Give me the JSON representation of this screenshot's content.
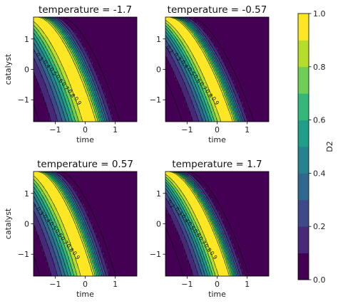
{
  "chart_data": {
    "type": "heatmap",
    "colorbar": {
      "label": "D2",
      "ticks": [
        "0.0",
        "0.2",
        "0.4",
        "0.6",
        "0.8",
        "1.0"
      ],
      "range": [
        0,
        1
      ],
      "colors": [
        "#440154",
        "#482878",
        "#3e4989",
        "#31688e",
        "#26828e",
        "#1f9e89",
        "#35b779",
        "#6ece58",
        "#b5de2b",
        "#fde725"
      ]
    },
    "panels": [
      {
        "title": "temperature = -1.7",
        "temperature": -1.7,
        "xlabel": "time",
        "ylabel": "catalyst",
        "ridge": {
          "x_at_top": -1.72,
          "x_at_bottom": 0.2,
          "curvature": 0.55,
          "width": 0.62
        },
        "contour_labels": [
          "0.0",
          "0.1",
          "0.2",
          "0.3",
          "0.4",
          "0.5",
          "0.6",
          "0.7",
          "0.8",
          "0.9"
        ]
      },
      {
        "title": "temperature = -0.57",
        "temperature": -0.57,
        "xlabel": "time",
        "ylabel": "",
        "ridge": {
          "x_at_top": -1.72,
          "x_at_bottom": 0.38,
          "curvature": 0.45,
          "width": 0.55
        },
        "contour_labels": [
          "0.0",
          "0.1",
          "0.2",
          "0.3",
          "0.4",
          "0.5",
          "0.6",
          "0.7",
          "0.8",
          "0.9"
        ]
      },
      {
        "title": "temperature = 0.57",
        "temperature": 0.57,
        "xlabel": "time",
        "ylabel": "catalyst",
        "ridge": {
          "x_at_top": -1.72,
          "x_at_bottom": 0.12,
          "curvature": 0.5,
          "width": 0.58
        },
        "contour_labels": [
          "0.0",
          "0.1",
          "0.2",
          "0.3",
          "0.4",
          "0.5",
          "0.6",
          "0.7",
          "0.8",
          "0.9"
        ]
      },
      {
        "title": "temperature = 1.7",
        "temperature": 1.7,
        "xlabel": "time",
        "ylabel": "",
        "ridge": {
          "x_at_top": -1.72,
          "x_at_bottom": 0.28,
          "curvature": 0.6,
          "width": 0.5
        },
        "contour_labels": [
          "0.0",
          "0.1",
          "0.2",
          "0.3",
          "0.4",
          "0.5",
          "0.6",
          "0.7",
          "0.8",
          "0.9"
        ]
      }
    ],
    "xlim": [
      -1.72,
      1.72
    ],
    "ylim": [
      -1.72,
      1.72
    ],
    "xticks": [
      -1,
      0,
      1
    ],
    "yticks": [
      -1,
      0,
      1
    ],
    "xtick_labels": [
      "−1",
      "0",
      "1"
    ],
    "ytick_labels": [
      "−1",
      "0",
      "1"
    ]
  }
}
